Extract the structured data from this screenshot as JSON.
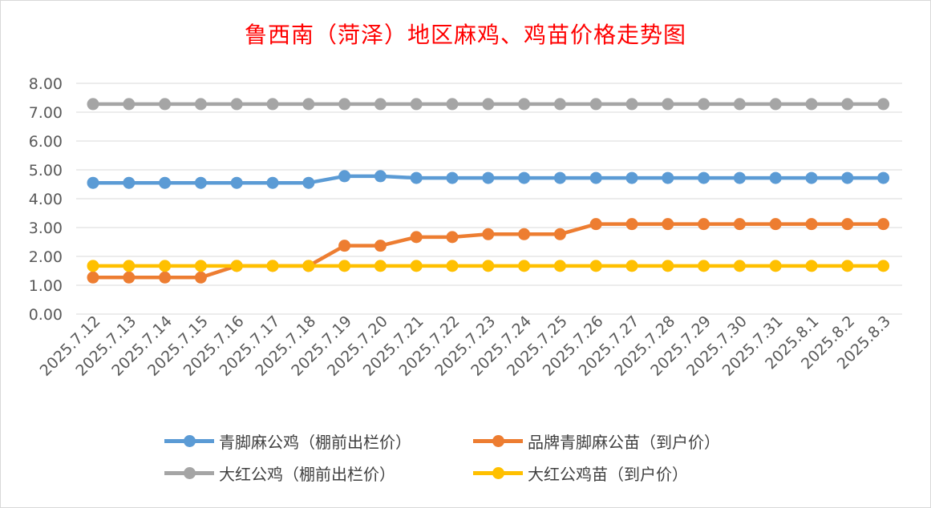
{
  "title": "鲁西南（菏泽）地区麻鸡、鸡苗价格走势图",
  "chart_data": {
    "type": "line",
    "title": "鲁西南（菏泽）地区麻鸡、鸡苗价格走势图",
    "xlabel": "",
    "ylabel": "",
    "ylim": [
      0,
      8
    ],
    "y_ticks": [
      "0.00",
      "1.00",
      "2.00",
      "3.00",
      "4.00",
      "5.00",
      "6.00",
      "7.00",
      "8.00"
    ],
    "grid": true,
    "legend_position": "bottom",
    "categories": [
      "2025.7.12",
      "2025.7.13",
      "2025.7.14",
      "2025.7.15",
      "2025.7.16",
      "2025.7.17",
      "2025.7.18",
      "2025.7.19",
      "2025.7.20",
      "2025.7.21",
      "2025.7.22",
      "2025.7.23",
      "2025.7.24",
      "2025.7.25",
      "2025.7.26",
      "2025.7.27",
      "2025.7.28",
      "2025.7.29",
      "2025.7.30",
      "2025.7.31",
      "2025.8.1",
      "2025.8.2",
      "2025.8.3"
    ],
    "series": [
      {
        "name": "青脚麻公鸡（棚前出栏价）",
        "color": "#5b9bd5",
        "values": [
          4.55,
          4.55,
          4.55,
          4.55,
          4.55,
          4.55,
          4.55,
          4.78,
          4.78,
          4.72,
          4.72,
          4.72,
          4.72,
          4.72,
          4.72,
          4.72,
          4.72,
          4.72,
          4.72,
          4.72,
          4.72,
          4.72,
          4.72
        ]
      },
      {
        "name": "品牌青脚麻公苗（到户价）",
        "color": "#ed7d31",
        "values": [
          1.27,
          1.27,
          1.27,
          1.27,
          1.67,
          1.67,
          1.67,
          2.37,
          2.37,
          2.67,
          2.67,
          2.77,
          2.77,
          2.77,
          3.12,
          3.12,
          3.12,
          3.12,
          3.12,
          3.12,
          3.12,
          3.12,
          3.12
        ]
      },
      {
        "name": "大红公鸡（棚前出栏价）",
        "color": "#a5a5a5",
        "values": [
          7.28,
          7.28,
          7.28,
          7.28,
          7.28,
          7.28,
          7.28,
          7.28,
          7.28,
          7.28,
          7.28,
          7.28,
          7.28,
          7.28,
          7.28,
          7.28,
          7.28,
          7.28,
          7.28,
          7.28,
          7.28,
          7.28,
          7.28
        ]
      },
      {
        "name": "大红公鸡苗（到户价）",
        "color": "#ffc000",
        "values": [
          1.67,
          1.67,
          1.67,
          1.67,
          1.67,
          1.67,
          1.67,
          1.67,
          1.67,
          1.67,
          1.67,
          1.67,
          1.67,
          1.67,
          1.67,
          1.67,
          1.67,
          1.67,
          1.67,
          1.67,
          1.67,
          1.67,
          1.67
        ]
      }
    ]
  }
}
